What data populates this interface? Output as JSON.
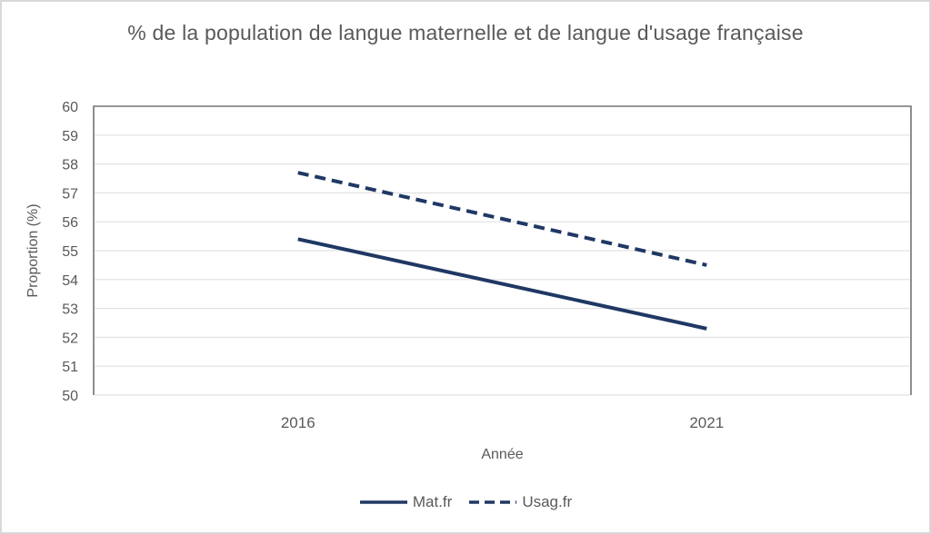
{
  "chart_data": {
    "type": "line",
    "title": "% de la population de langue maternelle et de langue d'usage française",
    "xlabel": "Année",
    "ylabel": "Proportion (%)",
    "categories": [
      "2016",
      "2021"
    ],
    "series": [
      {
        "name": "Mat.fr",
        "style": "solid",
        "values": [
          55.4,
          52.3
        ]
      },
      {
        "name": "Usag.fr",
        "style": "dashed",
        "values": [
          57.7,
          54.5
        ]
      }
    ],
    "ylim": [
      50,
      60
    ],
    "yticks": [
      50,
      51,
      52,
      53,
      54,
      55,
      56,
      57,
      58,
      59,
      60
    ],
    "grid": true,
    "legend_position": "bottom",
    "colors": {
      "line": "#1f3864",
      "text": "#595959",
      "gridline": "#e2e2e2",
      "plot_border": "#737373"
    }
  }
}
